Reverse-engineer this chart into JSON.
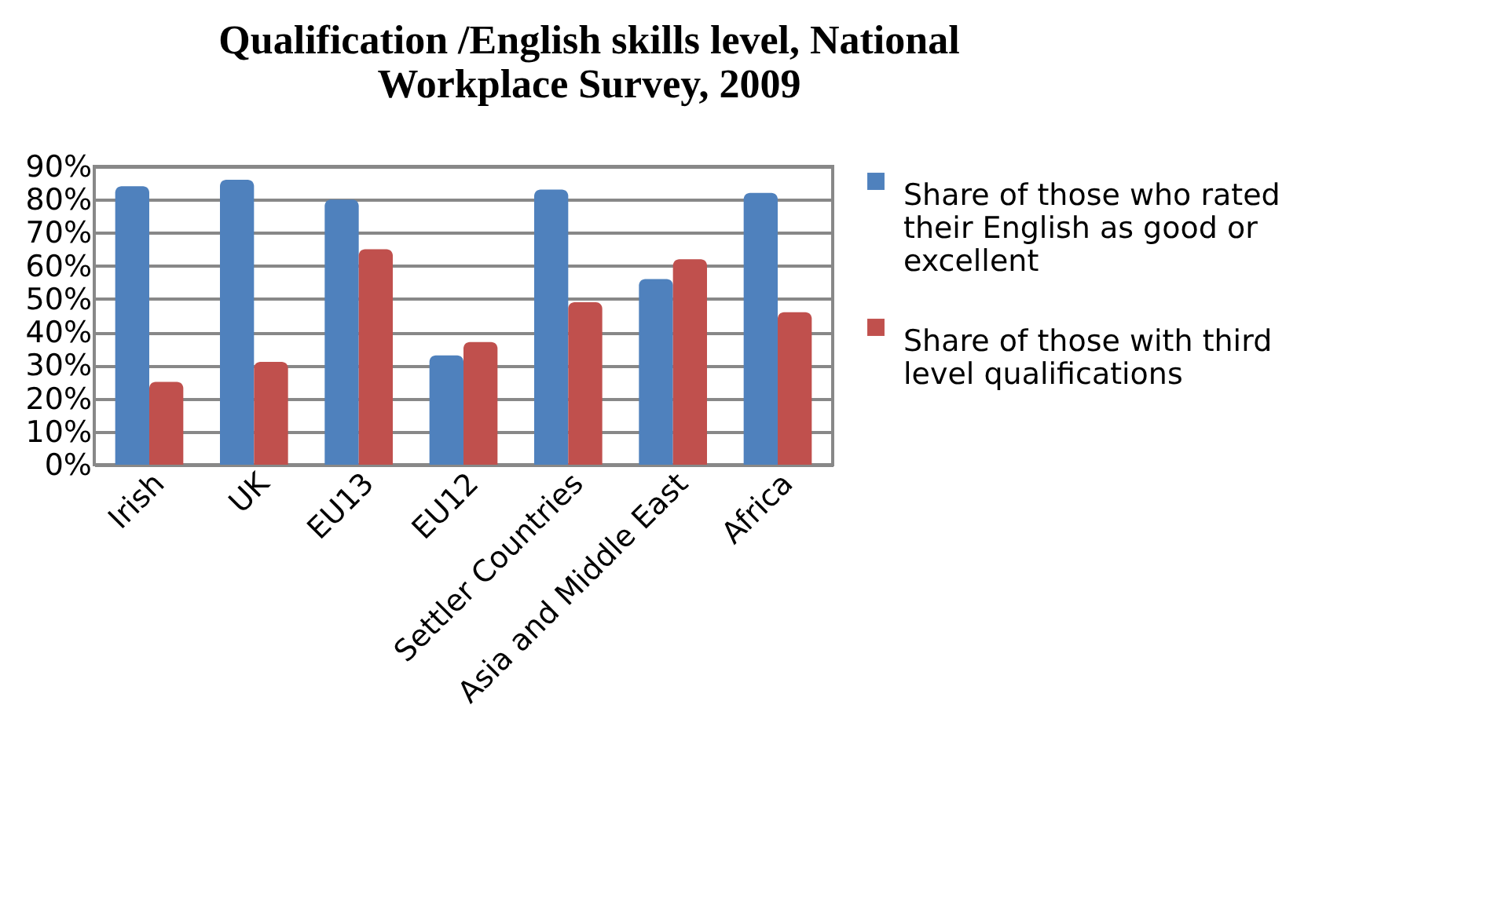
{
  "chart_data": {
    "type": "bar",
    "title": "Qualification /English skills level, National Workplace Survey, 2009",
    "categories": [
      "Irish",
      "UK",
      "EU13",
      "EU12",
      "Settler Countries",
      "Asia and Middle East",
      "Africa"
    ],
    "series": [
      {
        "name": "Share of those who rated their English as good or excellent",
        "color": "#4f81bd",
        "values": [
          84,
          86,
          80,
          33,
          83,
          56,
          82
        ]
      },
      {
        "name": "Share of those with third level qualifications",
        "color": "#c0504d",
        "values": [
          25,
          31,
          65,
          37,
          49,
          62,
          46
        ]
      }
    ],
    "ylim": [
      0,
      90
    ],
    "yticks": [
      {
        "value": 0,
        "label": "0%"
      },
      {
        "value": 10,
        "label": "10%"
      },
      {
        "value": 20,
        "label": "20%"
      },
      {
        "value": 30,
        "label": "30%"
      },
      {
        "value": 40,
        "label": "40%"
      },
      {
        "value": 50,
        "label": "50%"
      },
      {
        "value": 60,
        "label": "60%"
      },
      {
        "value": 70,
        "label": "70%"
      },
      {
        "value": 80,
        "label": "80%"
      },
      {
        "value": 90,
        "label": "90%"
      }
    ],
    "grid": "y",
    "legend": "right"
  }
}
